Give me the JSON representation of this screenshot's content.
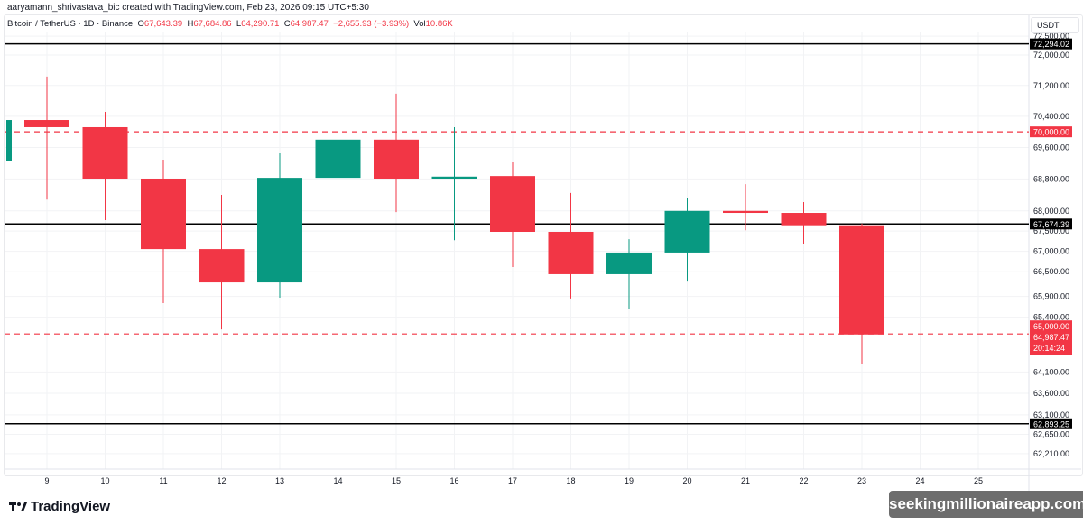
{
  "credit": "aaryamann_shrivastava_bic created with TradingView.com, Feb 23, 2026 09:15 UTC+5:30",
  "legend": {
    "symbol": "Bitcoin / TetherUS · 1D · Binance",
    "o_label": "O",
    "o": "67,643.39",
    "h_label": "H",
    "h": "67,684.86",
    "l_label": "L",
    "l": "64,290.71",
    "c_label": "C",
    "c": "64,987.47",
    "change": "−2,655.93 (−3.93%)",
    "vol_label": "Vol",
    "vol": "10.86K"
  },
  "currency": "USDT",
  "brand": "TradingView",
  "watermark": "seekingmillionaireapp.com",
  "colors": {
    "up": "#089981",
    "down": "#f23645",
    "level": "#000000",
    "dashed": "#f23645"
  },
  "chart_data": {
    "type": "candlestick",
    "y_scale": "log",
    "ylim": [
      62000,
      72600
    ],
    "x_ticks": [
      "9",
      "10",
      "11",
      "12",
      "13",
      "14",
      "15",
      "16",
      "17",
      "18",
      "19",
      "20",
      "21",
      "22",
      "23",
      "24",
      "25"
    ],
    "y_ticks": [
      "72,500.00",
      "72,000.00",
      "71,200.00",
      "70,400.00",
      "69,600.00",
      "68,800.00",
      "68,000.00",
      "67,500.00",
      "67,000.00",
      "66,500.00",
      "65,900.00",
      "65,400.00",
      "64,100.00",
      "63,600.00",
      "63,100.00",
      "62,650.00",
      "62,210.00"
    ],
    "candles": [
      {
        "day": 8,
        "o": 69266,
        "h": 70305,
        "l": 69266,
        "c": 70305
      },
      {
        "day": 9,
        "o": 70305,
        "h": 71435,
        "l": 68284,
        "c": 70120
      },
      {
        "day": 10,
        "o": 70120,
        "h": 70515,
        "l": 67770,
        "c": 68810
      },
      {
        "day": 11,
        "o": 68810,
        "h": 69290,
        "l": 65740,
        "c": 67055
      },
      {
        "day": 12,
        "o": 67055,
        "h": 68400,
        "l": 65110,
        "c": 66240
      },
      {
        "day": 13,
        "o": 66240,
        "h": 69450,
        "l": 65870,
        "c": 68830
      },
      {
        "day": 14,
        "o": 68830,
        "h": 70540,
        "l": 68715,
        "c": 69800
      },
      {
        "day": 15,
        "o": 69800,
        "h": 70985,
        "l": 67970,
        "c": 68810
      },
      {
        "day": 16,
        "o": 68810,
        "h": 70120,
        "l": 67275,
        "c": 68860
      },
      {
        "day": 17,
        "o": 68875,
        "h": 69220,
        "l": 66615,
        "c": 67480
      },
      {
        "day": 18,
        "o": 67480,
        "h": 68450,
        "l": 65850,
        "c": 66440
      },
      {
        "day": 19,
        "o": 66440,
        "h": 67300,
        "l": 65610,
        "c": 66970
      },
      {
        "day": 20,
        "o": 66970,
        "h": 68315,
        "l": 66260,
        "c": 68000
      },
      {
        "day": 21,
        "o": 68000,
        "h": 68670,
        "l": 67520,
        "c": 67950
      },
      {
        "day": 22,
        "o": 67950,
        "h": 68220,
        "l": 67170,
        "c": 67643.39
      },
      {
        "day": 23,
        "o": 67643.39,
        "h": 67684.86,
        "l": 64290.71,
        "c": 64987.47
      }
    ],
    "levels": [
      {
        "price": 72294.02,
        "label": "72,294.02",
        "style": "solid"
      },
      {
        "price": 70000.0,
        "label": "70,000.00",
        "style": "dashed"
      },
      {
        "price": 67674.39,
        "label": "67,674.39",
        "style": "solid"
      },
      {
        "price": 65000.0,
        "label": "65,000.00",
        "style": "dashed"
      },
      {
        "price": 62893.25,
        "label": "62,893.25",
        "style": "solid"
      }
    ],
    "last_price": {
      "label": "64,987.47",
      "countdown": "20:14:24"
    }
  }
}
